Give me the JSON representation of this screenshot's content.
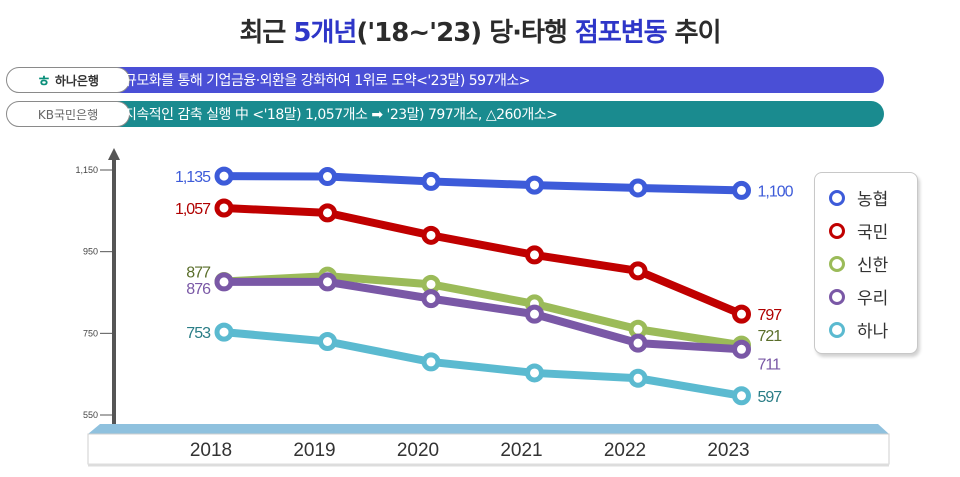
{
  "title": {
    "part1": "최근 ",
    "part2": "5개년",
    "part3": "('18~'23) 당·타행 ",
    "part4": "점포변동",
    "part5": " 추이"
  },
  "notes": [
    {
      "bank_label": "하나은행",
      "text": "규모화를 통해 기업금융·외환을 강화하여 1위로 도약<'23말) 597개소>",
      "color": "#4a4fd6"
    },
    {
      "bank_label": "KB국민은행",
      "text": "지속적인 감축 실행 中 <'18말) 1,057개소  ➡  '23말) 797개소, △260개소>",
      "color": "#1a8b8f"
    }
  ],
  "chart_data": {
    "type": "line",
    "title": "",
    "xlabel": "",
    "ylabel": "",
    "x": [
      "2018",
      "2019",
      "2020",
      "2021",
      "2022",
      "2023"
    ],
    "ylim": [
      550,
      1150
    ],
    "yticks": [
      550,
      750,
      950,
      1150
    ],
    "ytick_labels": [
      "550",
      "750",
      "950",
      "1,150"
    ],
    "grid": false,
    "legend_position": "right",
    "series": [
      {
        "name": "농협",
        "color": "#3d5bd9",
        "label_color": "#3d5bd9",
        "values": [
          1135,
          1134,
          1122,
          1113,
          1106,
          1100
        ],
        "start_label": "1,135",
        "end_label": "1,100"
      },
      {
        "name": "국민",
        "color": "#c00000",
        "label_color": "#b00000",
        "values": [
          1057,
          1045,
          990,
          942,
          903,
          797
        ],
        "start_label": "1,057",
        "end_label": "797"
      },
      {
        "name": "신한",
        "color": "#9bbb59",
        "label_color": "#5a6e2a",
        "values": [
          877,
          890,
          870,
          822,
          760,
          721
        ],
        "start_label": "877",
        "end_label": "721"
      },
      {
        "name": "우리",
        "color": "#7a58a6",
        "label_color": "#7a58a6",
        "values": [
          876,
          876,
          835,
          797,
          726,
          711
        ],
        "start_label": "876",
        "end_label": "711"
      },
      {
        "name": "하나",
        "color": "#5bbad0",
        "label_color": "#2a7d86",
        "values": [
          753,
          730,
          680,
          653,
          640,
          597
        ],
        "start_label": "753",
        "end_label": "597"
      }
    ]
  }
}
